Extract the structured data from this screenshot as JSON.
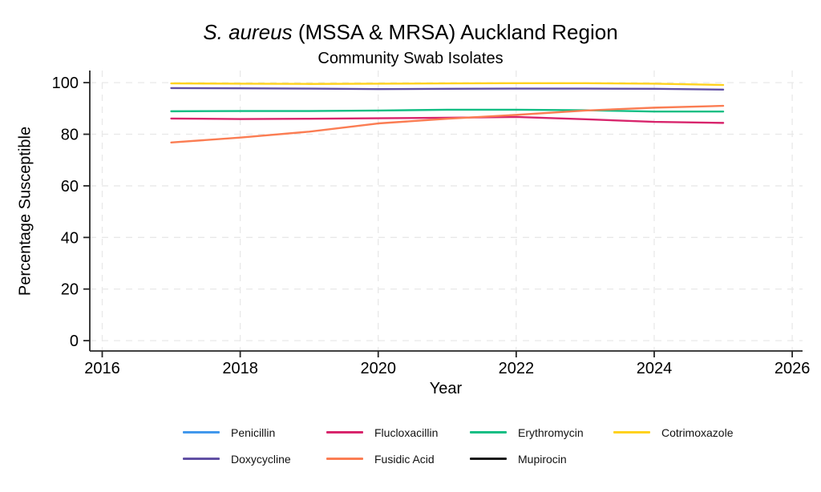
{
  "figure": {
    "title_italic": "S. aureus",
    "title_rest": " (MSSA & MRSA) Auckland Region",
    "subtitle": "Community Swab Isolates"
  },
  "chart_data": {
    "type": "line",
    "title": "S. aureus (MSSA & MRSA) Auckland Region",
    "subtitle": "Community Swab Isolates",
    "xlabel": "Year",
    "ylabel": "Percentage Susceptible",
    "x_ticks": [
      2016,
      2018,
      2020,
      2022,
      2024,
      2026
    ],
    "y_ticks": [
      0,
      20,
      40,
      60,
      80,
      100
    ],
    "xlim": [
      2016,
      2026
    ],
    "ylim": [
      0,
      100
    ],
    "grid": "light dashed horizontal and vertical",
    "legend_position": "below plot, 4 columns",
    "years": [
      2017,
      2018,
      2019,
      2020,
      2021,
      2022,
      2023,
      2024,
      2025
    ],
    "series": [
      {
        "name": "Penicillin",
        "color": "#4198EC",
        "values": null,
        "note": "legend entry only; no line visible in plot"
      },
      {
        "name": "Flucloxacillin",
        "color": "#D8256C",
        "values": [
          86.1,
          85.9,
          86.0,
          86.2,
          86.4,
          86.7,
          85.8,
          84.8,
          84.4
        ]
      },
      {
        "name": "Erythromycin",
        "color": "#12BE84",
        "values": [
          88.9,
          89.0,
          89.0,
          89.2,
          89.5,
          89.5,
          89.3,
          88.8,
          88.8
        ]
      },
      {
        "name": "Cotrimoxazole",
        "color": "#FFD21E",
        "values": [
          99.7,
          99.6,
          99.5,
          99.6,
          99.7,
          99.8,
          99.8,
          99.6,
          99.1
        ]
      },
      {
        "name": "Doxycycline",
        "color": "#6150A4",
        "values": [
          97.9,
          97.8,
          97.7,
          97.5,
          97.6,
          97.7,
          97.7,
          97.6,
          97.3
        ]
      },
      {
        "name": "Fusidic Acid",
        "color": "#FB7D53",
        "values": [
          76.8,
          78.7,
          81.0,
          84.2,
          86.0,
          87.5,
          89.2,
          90.3,
          91.0
        ]
      },
      {
        "name": "Mupirocin",
        "color": "#1A1A1A",
        "values": null,
        "note": "legend entry only; no line visible in plot"
      }
    ]
  }
}
